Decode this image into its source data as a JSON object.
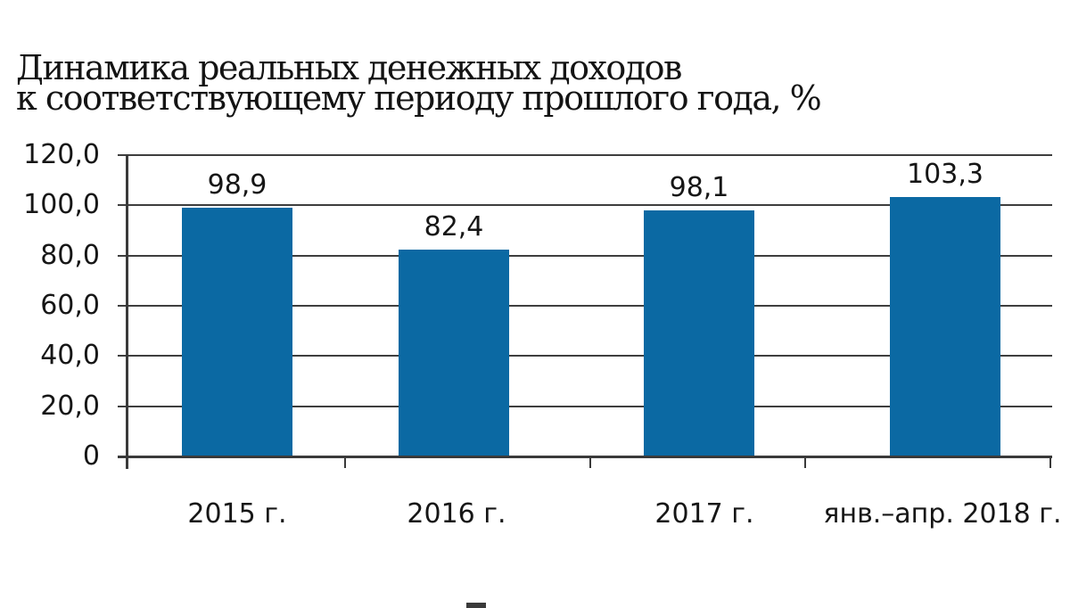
{
  "title": {
    "line1": "Динамика реальных денежных доходов",
    "line2": "к соответствующему периоду прошлого года, %"
  },
  "chart_data": {
    "type": "bar",
    "title": "Динамика реальных денежных доходов к соответствующему периоду прошлого года, %",
    "categories": [
      "2015 г.",
      "2016 г.",
      "2017 г.",
      "янв.–апр. 2018 г."
    ],
    "values": [
      98.9,
      82.4,
      98.1,
      103.3
    ],
    "value_labels": [
      "98,9",
      "82,4",
      "98,1",
      "103,3"
    ],
    "y_ticks": [
      {
        "value": 120,
        "label": "120,0"
      },
      {
        "value": 100,
        "label": "100,0"
      },
      {
        "value": 80,
        "label": "80,0"
      },
      {
        "value": 60,
        "label": "60,0"
      },
      {
        "value": 40,
        "label": "40,0"
      },
      {
        "value": 20,
        "label": "20,0"
      },
      {
        "value": 0,
        "label": "0"
      }
    ],
    "ylim": [
      0,
      120
    ],
    "xlabel": "",
    "ylabel": "",
    "grid": true,
    "legend_position": "bottom, cut off at image edge",
    "bar_color": "#0b69a3",
    "axis_color": "#3a3a3a",
    "decimal_separator": ","
  }
}
